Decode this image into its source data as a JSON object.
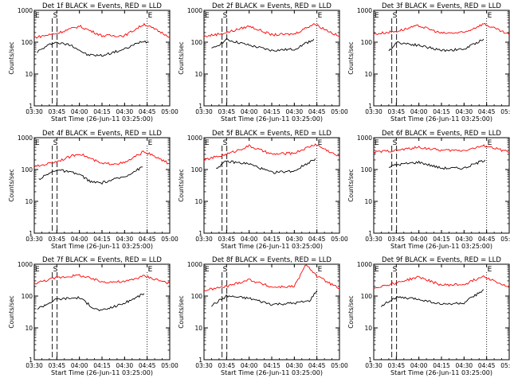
{
  "figure": {
    "ylabel": "Counts/sec",
    "xlabel": "Start Time (26-Jun-11 03:25:00)",
    "colors": {
      "events": "#000000",
      "lld": "#ff0000",
      "axes": "#000000"
    }
  },
  "chart_data": [
    {
      "type": "line",
      "title": "Det 1f BLACK = Events, RED = LLD",
      "xlim": [
        "03:30",
        "05:00"
      ],
      "ylim": [
        1,
        1000
      ],
      "yscale": "log",
      "xticks": [
        "03:30",
        "03:45",
        "04:00",
        "04:15",
        "04:30",
        "04:45",
        "05:00"
      ],
      "yticks": [
        "1",
        "10",
        "100",
        "1000"
      ],
      "markers": [
        {
          "label": "E",
          "x": "03:30"
        },
        {
          "label": "S",
          "x": "03:42"
        },
        {
          "label": "E",
          "x": "04:45"
        }
      ],
      "series": [
        {
          "name": "Events",
          "values": [
            {
              "x": "03:32",
              "y": 50
            },
            {
              "x": "03:43",
              "y": 100
            },
            {
              "x": "03:55",
              "y": 80
            },
            {
              "x": "04:05",
              "y": 40
            },
            {
              "x": "04:15",
              "y": 38
            },
            {
              "x": "04:30",
              "y": 60
            },
            {
              "x": "04:42",
              "y": 110
            },
            {
              "x": "04:46",
              "y": 100
            }
          ]
        },
        {
          "name": "LLD",
          "values": [
            {
              "x": "03:30",
              "y": 140
            },
            {
              "x": "03:45",
              "y": 190
            },
            {
              "x": "04:00",
              "y": 320
            },
            {
              "x": "04:15",
              "y": 160
            },
            {
              "x": "04:30",
              "y": 160
            },
            {
              "x": "04:43",
              "y": 370
            },
            {
              "x": "05:00",
              "y": 150
            }
          ]
        }
      ]
    },
    {
      "type": "line",
      "title": "Det 2f BLACK = Events, RED = LLD",
      "xlim": [
        "03:30",
        "05:00"
      ],
      "ylim": [
        1,
        1000
      ],
      "yscale": "log",
      "xticks": [
        "03:30",
        "03:45",
        "04:00",
        "04:15",
        "04:30",
        "04:45",
        "05:00"
      ],
      "yticks": [
        "1",
        "10",
        "100",
        "1000"
      ],
      "markers": [
        {
          "label": "E",
          "x": "03:30"
        },
        {
          "label": "S",
          "x": "03:42"
        },
        {
          "label": "E",
          "x": "04:45"
        }
      ],
      "series": [
        {
          "name": "Events",
          "values": [
            {
              "x": "03:35",
              "y": 60
            },
            {
              "x": "03:45",
              "y": 120
            },
            {
              "x": "04:00",
              "y": 80
            },
            {
              "x": "04:15",
              "y": 55
            },
            {
              "x": "04:30",
              "y": 60
            },
            {
              "x": "04:43",
              "y": 125
            }
          ]
        },
        {
          "name": "LLD",
          "values": [
            {
              "x": "03:30",
              "y": 150
            },
            {
              "x": "03:45",
              "y": 200
            },
            {
              "x": "04:00",
              "y": 320
            },
            {
              "x": "04:15",
              "y": 170
            },
            {
              "x": "04:30",
              "y": 180
            },
            {
              "x": "04:43",
              "y": 380
            },
            {
              "x": "05:00",
              "y": 150
            }
          ]
        }
      ]
    },
    {
      "type": "line",
      "title": "Det 3f BLACK = Events, RED = LLD",
      "xlim": [
        "03:30",
        "05:00"
      ],
      "ylim": [
        1,
        1000
      ],
      "yscale": "log",
      "xticks": [
        "03:30",
        "03:45",
        "04:00",
        "04:15",
        "04:30",
        "04:45",
        "05:00"
      ],
      "yticks": [
        "1",
        "10",
        "100",
        "1000"
      ],
      "markers": [
        {
          "label": "E",
          "x": "03:30"
        },
        {
          "label": "S",
          "x": "03:42"
        },
        {
          "label": "E",
          "x": "04:45"
        }
      ],
      "series": [
        {
          "name": "Events",
          "values": [
            {
              "x": "03:40",
              "y": 50
            },
            {
              "x": "03:45",
              "y": 100
            },
            {
              "x": "04:00",
              "y": 80
            },
            {
              "x": "04:15",
              "y": 55
            },
            {
              "x": "04:30",
              "y": 60
            },
            {
              "x": "04:43",
              "y": 125
            }
          ]
        },
        {
          "name": "LLD",
          "values": [
            {
              "x": "03:30",
              "y": 180
            },
            {
              "x": "03:45",
              "y": 220
            },
            {
              "x": "04:00",
              "y": 330
            },
            {
              "x": "04:15",
              "y": 190
            },
            {
              "x": "04:30",
              "y": 200
            },
            {
              "x": "04:43",
              "y": 380
            },
            {
              "x": "05:00",
              "y": 170
            }
          ]
        }
      ]
    },
    {
      "type": "line",
      "title": "Det 4f BLACK = Events, RED = LLD",
      "xlim": [
        "03:30",
        "05:00"
      ],
      "ylim": [
        1,
        1000
      ],
      "yscale": "log",
      "xticks": [
        "03:30",
        "03:45",
        "04:00",
        "04:15",
        "04:30",
        "04:45",
        "05:00"
      ],
      "yticks": [
        "1",
        "10",
        "100",
        "1000"
      ],
      "markers": [
        {
          "label": "E",
          "x": "03:30"
        },
        {
          "label": "S",
          "x": "03:42"
        },
        {
          "label": "E",
          "x": "04:45"
        }
      ],
      "series": [
        {
          "name": "Events",
          "values": [
            {
              "x": "03:33",
              "y": 50
            },
            {
              "x": "03:45",
              "y": 100
            },
            {
              "x": "04:00",
              "y": 70
            },
            {
              "x": "04:08",
              "y": 40
            },
            {
              "x": "04:15",
              "y": 38
            },
            {
              "x": "04:30",
              "y": 60
            },
            {
              "x": "04:42",
              "y": 120
            }
          ]
        },
        {
          "name": "LLD",
          "values": [
            {
              "x": "03:30",
              "y": 120
            },
            {
              "x": "03:45",
              "y": 180
            },
            {
              "x": "04:00",
              "y": 320
            },
            {
              "x": "04:15",
              "y": 150
            },
            {
              "x": "04:30",
              "y": 160
            },
            {
              "x": "04:43",
              "y": 370
            },
            {
              "x": "05:00",
              "y": 150
            }
          ]
        }
      ]
    },
    {
      "type": "line",
      "title": "Det 5f BLACK = Events, RED = LLD",
      "xlim": [
        "03:30",
        "05:00"
      ],
      "ylim": [
        1,
        1000
      ],
      "yscale": "log",
      "xticks": [
        "03:30",
        "03:45",
        "04:00",
        "04:15",
        "04:30",
        "04:45",
        "05:00"
      ],
      "yticks": [
        "1",
        "10",
        "100",
        "1000"
      ],
      "markers": [
        {
          "label": "E",
          "x": "03:30"
        },
        {
          "label": "S",
          "x": "03:42"
        },
        {
          "label": "E",
          "x": "04:45"
        }
      ],
      "series": [
        {
          "name": "Events",
          "values": [
            {
              "x": "03:38",
              "y": 110
            },
            {
              "x": "03:45",
              "y": 180
            },
            {
              "x": "04:00",
              "y": 150
            },
            {
              "x": "04:15",
              "y": 80
            },
            {
              "x": "04:30",
              "y": 90
            },
            {
              "x": "04:44",
              "y": 220
            }
          ]
        },
        {
          "name": "LLD",
          "values": [
            {
              "x": "03:30",
              "y": 200
            },
            {
              "x": "03:45",
              "y": 300
            },
            {
              "x": "04:00",
              "y": 550
            },
            {
              "x": "04:15",
              "y": 300
            },
            {
              "x": "04:30",
              "y": 330
            },
            {
              "x": "04:44",
              "y": 620
            },
            {
              "x": "05:00",
              "y": 250
            }
          ]
        }
      ]
    },
    {
      "type": "line",
      "title": "Det 6f BLACK = Events, RED = LLD",
      "xlim": [
        "03:30",
        "05:00"
      ],
      "ylim": [
        1,
        1000
      ],
      "yscale": "log",
      "xticks": [
        "03:30",
        "03:45",
        "04:00",
        "04:15",
        "04:30",
        "04:45",
        "05:00"
      ],
      "yticks": [
        "1",
        "10",
        "100",
        "1000"
      ],
      "markers": [
        {
          "label": "E",
          "x": "03:30"
        },
        {
          "label": "S",
          "x": "03:42"
        },
        {
          "label": "E",
          "x": "04:45"
        }
      ],
      "series": [
        {
          "name": "Events",
          "values": [
            {
              "x": "03:40",
              "y": 120
            },
            {
              "x": "03:45",
              "y": 140
            },
            {
              "x": "04:00",
              "y": 170
            },
            {
              "x": "04:15",
              "y": 110
            },
            {
              "x": "04:30",
              "y": 110
            },
            {
              "x": "04:44",
              "y": 200
            }
          ]
        },
        {
          "name": "LLD",
          "values": [
            {
              "x": "03:30",
              "y": 350
            },
            {
              "x": "03:45",
              "y": 400
            },
            {
              "x": "04:00",
              "y": 500
            },
            {
              "x": "04:15",
              "y": 400
            },
            {
              "x": "04:30",
              "y": 400
            },
            {
              "x": "04:44",
              "y": 560
            },
            {
              "x": "05:00",
              "y": 350
            }
          ]
        }
      ]
    },
    {
      "type": "line",
      "title": "Det 7f BLACK = Events, RED = LLD",
      "xlim": [
        "03:30",
        "05:00"
      ],
      "ylim": [
        1,
        1000
      ],
      "yscale": "log",
      "xticks": [
        "03:30",
        "03:45",
        "04:00",
        "04:15",
        "04:30",
        "04:45",
        "05:00"
      ],
      "yticks": [
        "1",
        "10",
        "100",
        "1000"
      ],
      "markers": [
        {
          "label": "E",
          "x": "03:30"
        },
        {
          "label": "S",
          "x": "03:42"
        },
        {
          "label": "E",
          "x": "04:45"
        }
      ],
      "series": [
        {
          "name": "Events",
          "values": [
            {
              "x": "03:32",
              "y": 40
            },
            {
              "x": "03:45",
              "y": 80
            },
            {
              "x": "04:00",
              "y": 90
            },
            {
              "x": "04:10",
              "y": 40
            },
            {
              "x": "04:15",
              "y": 35
            },
            {
              "x": "04:30",
              "y": 60
            },
            {
              "x": "04:43",
              "y": 120
            }
          ]
        },
        {
          "name": "LLD",
          "values": [
            {
              "x": "03:30",
              "y": 250
            },
            {
              "x": "03:45",
              "y": 380
            },
            {
              "x": "04:00",
              "y": 450
            },
            {
              "x": "04:15",
              "y": 280
            },
            {
              "x": "04:30",
              "y": 280
            },
            {
              "x": "04:43",
              "y": 430
            },
            {
              "x": "05:00",
              "y": 250
            }
          ]
        }
      ]
    },
    {
      "type": "line",
      "title": "Det 8f BLACK = Events, RED = LLD",
      "xlim": [
        "03:30",
        "05:00"
      ],
      "ylim": [
        1,
        1000
      ],
      "yscale": "log",
      "xticks": [
        "03:30",
        "03:45",
        "04:00",
        "04:15",
        "04:30",
        "04:45",
        "05:00"
      ],
      "yticks": [
        "1",
        "10",
        "100",
        "1000"
      ],
      "markers": [
        {
          "label": "E",
          "x": "03:30"
        },
        {
          "label": "S",
          "x": "03:42"
        },
        {
          "label": "E",
          "x": "04:45"
        }
      ],
      "series": [
        {
          "name": "Events",
          "values": [
            {
              "x": "03:35",
              "y": 50
            },
            {
              "x": "03:45",
              "y": 100
            },
            {
              "x": "04:00",
              "y": 85
            },
            {
              "x": "04:15",
              "y": 55
            },
            {
              "x": "04:30",
              "y": 60
            },
            {
              "x": "04:40",
              "y": 70
            },
            {
              "x": "04:45",
              "y": 150
            }
          ]
        },
        {
          "name": "LLD",
          "values": [
            {
              "x": "03:30",
              "y": 150
            },
            {
              "x": "03:45",
              "y": 200
            },
            {
              "x": "04:00",
              "y": 330
            },
            {
              "x": "04:15",
              "y": 190
            },
            {
              "x": "04:30",
              "y": 200
            },
            {
              "x": "04:38",
              "y": 1000
            },
            {
              "x": "04:45",
              "y": 420
            },
            {
              "x": "05:00",
              "y": 170
            }
          ]
        }
      ]
    },
    {
      "type": "line",
      "title": "Det 9f BLACK = Events, RED = LLD",
      "xlim": [
        "03:30",
        "05:00"
      ],
      "ylim": [
        1,
        1000
      ],
      "yscale": "log",
      "xticks": [
        "03:30",
        "03:45",
        "04:00",
        "04:15",
        "04:30",
        "04:45",
        "05:00"
      ],
      "yticks": [
        "1",
        "10",
        "100",
        "1000"
      ],
      "markers": [
        {
          "label": "E",
          "x": "03:30"
        },
        {
          "label": "S",
          "x": "03:42"
        },
        {
          "label": "E",
          "x": "04:45"
        }
      ],
      "series": [
        {
          "name": "Events",
          "values": [
            {
              "x": "03:35",
              "y": 50
            },
            {
              "x": "03:45",
              "y": 90
            },
            {
              "x": "04:00",
              "y": 80
            },
            {
              "x": "04:15",
              "y": 55
            },
            {
              "x": "04:30",
              "y": 60
            },
            {
              "x": "04:43",
              "y": 160
            }
          ]
        },
        {
          "name": "LLD",
          "values": [
            {
              "x": "03:30",
              "y": 180
            },
            {
              "x": "03:45",
              "y": 260
            },
            {
              "x": "04:00",
              "y": 400
            },
            {
              "x": "04:15",
              "y": 220
            },
            {
              "x": "04:30",
              "y": 230
            },
            {
              "x": "04:43",
              "y": 430
            },
            {
              "x": "05:00",
              "y": 180
            }
          ]
        }
      ]
    }
  ]
}
